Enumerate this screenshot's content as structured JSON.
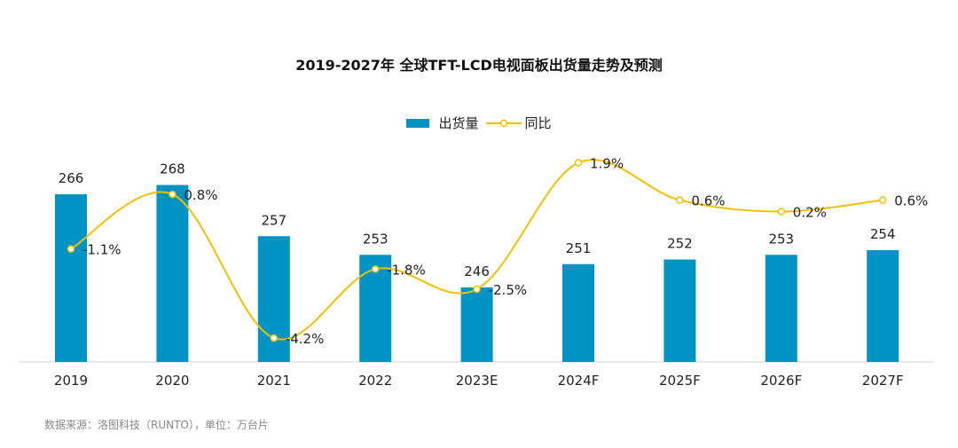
{
  "chart_data": {
    "type": "bar+line",
    "title": "2019-2027年 全球TFT-LCD电视面板出货量走势及预测",
    "categories": [
      "2019",
      "2020",
      "2021",
      "2022",
      "2023E",
      "2024F",
      "2025F",
      "2026F",
      "2027F"
    ],
    "series": [
      {
        "name": "出货量",
        "type": "bar",
        "values": [
          266,
          268,
          257,
          253,
          246,
          251,
          252,
          253,
          254
        ],
        "labels": [
          "266",
          "268",
          "257",
          "253",
          "246",
          "251",
          "252",
          "253",
          "254"
        ],
        "color": "#0093c4"
      },
      {
        "name": "同比",
        "type": "line",
        "smooth": true,
        "values": [
          -1.1,
          0.8,
          -4.2,
          -1.8,
          -2.5,
          1.9,
          0.6,
          0.2,
          0.6
        ],
        "labels": [
          "-1.1%",
          "0.8%",
          "-4.2%",
          "-1.8%",
          "-2.5%",
          "1.9%",
          "0.6%",
          "0.2%",
          "0.6%"
        ],
        "color": "#f0c000"
      }
    ],
    "legend": "top",
    "grid": false
  },
  "source": "数据来源：洛图科技（RUNTO），单位：万台片"
}
